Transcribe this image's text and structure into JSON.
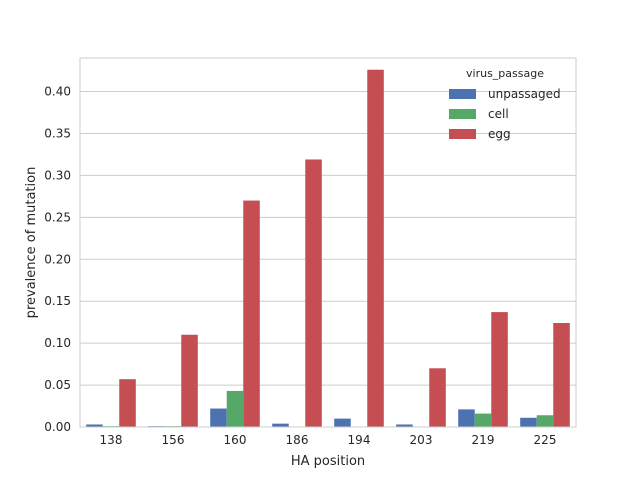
{
  "chart_data": {
    "type": "bar",
    "xlabel": "HA position",
    "ylabel": "prevalence of mutation",
    "categories": [
      "138",
      "156",
      "160",
      "186",
      "194",
      "203",
      "219",
      "225"
    ],
    "ylim": [
      0,
      0.44
    ],
    "yticks": [
      "0.00",
      "0.05",
      "0.10",
      "0.15",
      "0.20",
      "0.25",
      "0.30",
      "0.35",
      "0.40"
    ],
    "grid": "horizontal",
    "legend": {
      "title": "virus_passage",
      "placement": "top-right"
    },
    "series": [
      {
        "name": "unpassaged",
        "color": "#4c72b0",
        "values": [
          0.003,
          0.001,
          0.022,
          0.004,
          0.01,
          0.003,
          0.021,
          0.011
        ]
      },
      {
        "name": "cell",
        "color": "#55a868",
        "values": [
          0.001,
          0.001,
          0.043,
          0.0,
          0.0,
          0.0,
          0.016,
          0.014
        ]
      },
      {
        "name": "egg",
        "color": "#c44e52",
        "values": [
          0.057,
          0.11,
          0.27,
          0.319,
          0.426,
          0.07,
          0.137,
          0.124
        ]
      }
    ]
  }
}
